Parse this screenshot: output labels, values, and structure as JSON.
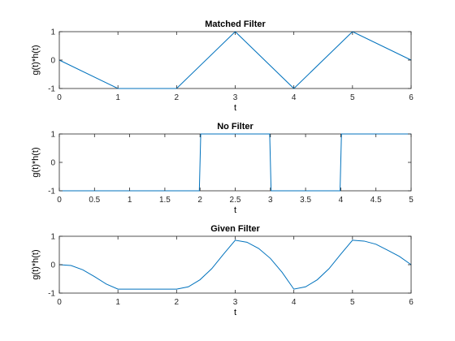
{
  "chart_data": [
    {
      "type": "line",
      "title": "Matched Filter",
      "xlabel": "t",
      "ylabel": "g(t)*h(t)",
      "xlim": [
        0,
        6
      ],
      "ylim": [
        -1,
        1
      ],
      "xticks": [
        "0",
        "1",
        "2",
        "3",
        "4",
        "5",
        "6"
      ],
      "yticks": [
        "-1",
        "0",
        "1"
      ],
      "grid": false,
      "color": "#0072BD",
      "series": [
        {
          "x": [
            0,
            1,
            2,
            3,
            4,
            5,
            6
          ],
          "y": [
            0,
            -1,
            -1,
            1,
            -1,
            1,
            0
          ]
        }
      ]
    },
    {
      "type": "line",
      "title": "No Filter",
      "xlabel": "t",
      "ylabel": "g(t)*h(t)",
      "xlim": [
        0,
        5
      ],
      "ylim": [
        -1,
        1
      ],
      "xticks": [
        "0",
        "0.5",
        "1",
        "1.5",
        "2",
        "2.5",
        "3",
        "3.5",
        "4",
        "4.5",
        "5"
      ],
      "yticks": [
        "-1",
        "0",
        "1"
      ],
      "grid": false,
      "color": "#0072BD",
      "series": [
        {
          "x": [
            0,
            1.99,
            2.01,
            2.99,
            3.01,
            3.99,
            4.01,
            5
          ],
          "y": [
            -1,
            -1,
            1,
            1,
            -1,
            -1,
            1,
            1
          ]
        }
      ]
    },
    {
      "type": "line",
      "title": "Given Filter",
      "xlabel": "t",
      "ylabel": "g(t)*h(t)",
      "xlim": [
        0,
        6
      ],
      "ylim": [
        -1,
        1
      ],
      "xticks": [
        "0",
        "1",
        "2",
        "3",
        "4",
        "5",
        "6"
      ],
      "yticks": [
        "-1",
        "0",
        "1"
      ],
      "grid": false,
      "color": "#0072BD",
      "series": [
        {
          "x": [
            0,
            0.2,
            0.4,
            0.6,
            0.8,
            1.0,
            1.5,
            2.0,
            2.2,
            2.4,
            2.6,
            2.8,
            3.0,
            3.2,
            3.4,
            3.6,
            3.8,
            4.0,
            4.2,
            4.4,
            4.6,
            4.8,
            5.0,
            5.2,
            5.4,
            5.6,
            5.8,
            6.0
          ],
          "y": [
            0,
            -0.03,
            -0.18,
            -0.42,
            -0.68,
            -0.86,
            -0.86,
            -0.86,
            -0.78,
            -0.53,
            -0.14,
            0.37,
            0.86,
            0.79,
            0.57,
            0.22,
            -0.27,
            -0.86,
            -0.78,
            -0.53,
            -0.14,
            0.37,
            0.86,
            0.83,
            0.72,
            0.51,
            0.29,
            0.0
          ]
        }
      ]
    }
  ]
}
